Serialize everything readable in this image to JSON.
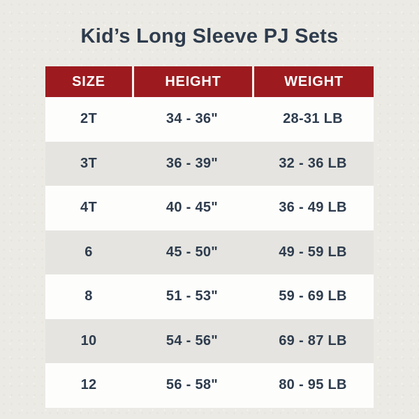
{
  "title": "Kid’s Long Sleeve PJ Sets",
  "colors": {
    "page_bg": "#ECEAE4",
    "header_bg": "#9D1B1F",
    "header_text": "#FFFFFF",
    "body_text": "#2E3C4D",
    "row_white": "#FDFDFC",
    "row_gray": "#E5E4E0"
  },
  "chart_data": {
    "type": "table",
    "title": "Kid’s Long Sleeve PJ Sets",
    "columns": [
      "SIZE",
      "HEIGHT",
      "WEIGHT"
    ],
    "rows": [
      [
        "2T",
        "34 - 36\"",
        "28-31 LB"
      ],
      [
        "3T",
        "36 - 39\"",
        "32 - 36 LB"
      ],
      [
        "4T",
        "40 - 45\"",
        "36 - 49 LB"
      ],
      [
        "6",
        "45 - 50\"",
        "49 - 59 LB"
      ],
      [
        "8",
        "51 - 53\"",
        "59 - 69 LB"
      ],
      [
        "10",
        "54 - 56\"",
        "69 - 87 LB"
      ],
      [
        "12",
        "56 - 58\"",
        "80 - 95 LB"
      ]
    ],
    "legend": false,
    "grid": false,
    "layout": "striped-rows, red header band, centered text"
  }
}
